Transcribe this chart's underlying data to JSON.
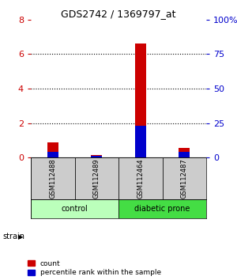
{
  "title": "GDS2742 / 1369797_at",
  "samples": [
    "GSM112488",
    "GSM112489",
    "GSM112464",
    "GSM112487"
  ],
  "groups": [
    "control",
    "control",
    "diabetic prone",
    "diabetic prone"
  ],
  "count_values": [
    0.9,
    0.15,
    6.6,
    0.55
  ],
  "percentile_values": [
    0.35,
    0.1,
    1.85,
    0.35
  ],
  "left_ylim": [
    0,
    8
  ],
  "right_ylim": [
    0,
    100
  ],
  "left_yticks": [
    0,
    2,
    4,
    6,
    8
  ],
  "right_yticks": [
    0,
    25,
    50,
    75,
    100
  ],
  "right_yticklabels": [
    "0",
    "25",
    "50",
    "75",
    "100%"
  ],
  "left_tick_color": "#cc0000",
  "right_tick_color": "#0000cc",
  "count_color": "#cc0000",
  "percentile_color": "#0000cc",
  "dotted_lines": [
    2,
    4,
    6
  ],
  "group_colors": {
    "control": "#bbffbb",
    "diabetic prone": "#44dd44"
  },
  "sample_box_color": "#cccccc",
  "bar_width": 0.25,
  "group_label": "strain",
  "legend_count": "count",
  "legend_percentile": "percentile rank within the sample",
  "fig_width": 3.0,
  "fig_height": 3.54,
  "dpi": 100
}
